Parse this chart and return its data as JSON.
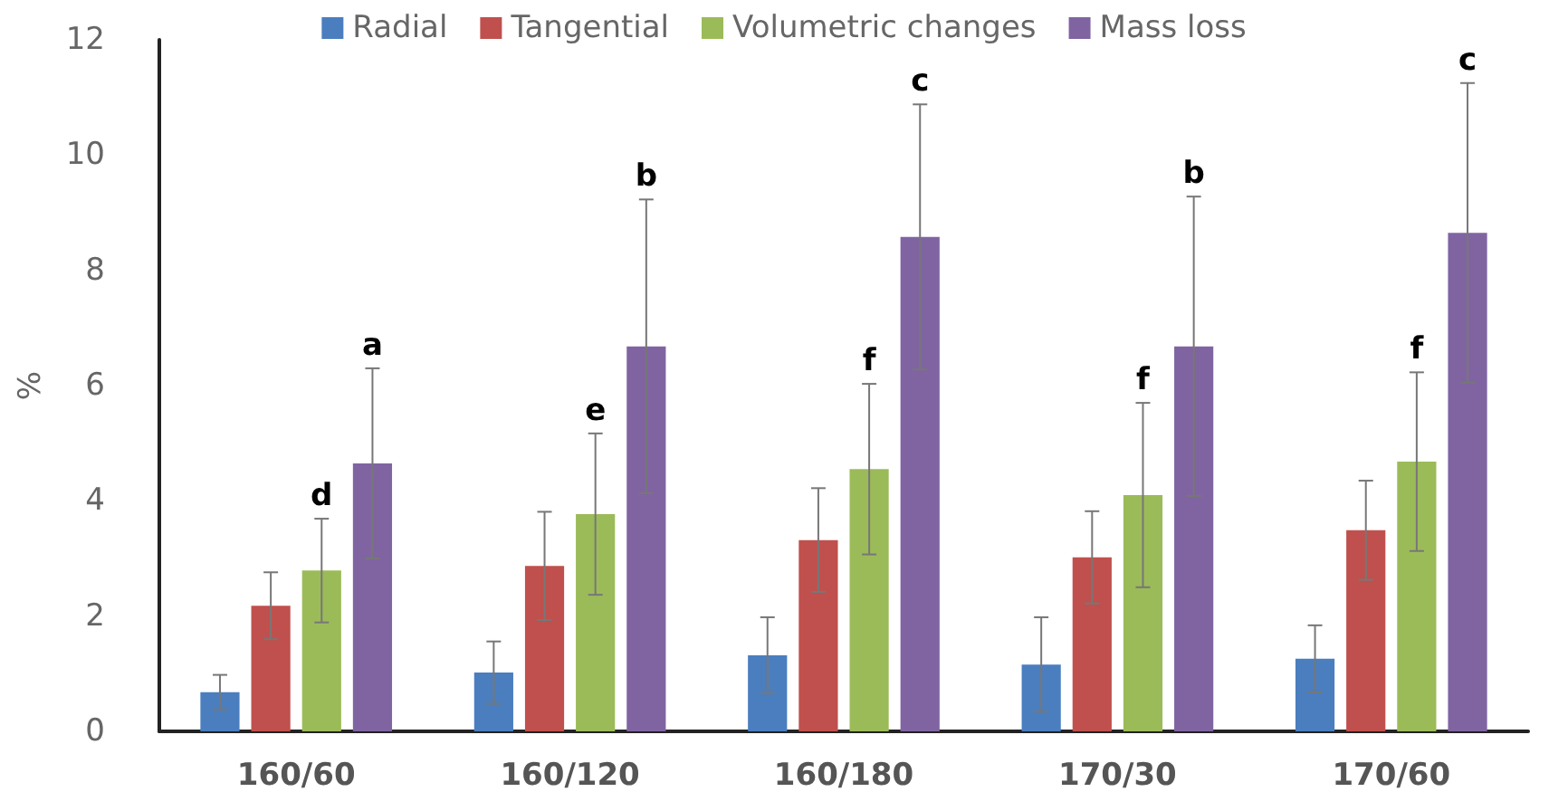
{
  "chart_data": {
    "type": "bar",
    "ylabel": "%",
    "categories": [
      "160/60",
      "160/120",
      "160/180",
      "170/30",
      "170/60"
    ],
    "series": [
      {
        "name": "Radial",
        "color": "#4a7ebf",
        "values": [
          0.68,
          1.02,
          1.32,
          1.16,
          1.26
        ],
        "errors": [
          0.3,
          0.54,
          0.66,
          0.82,
          0.58
        ]
      },
      {
        "name": "Tangential",
        "color": "#c0504d",
        "values": [
          2.18,
          2.87,
          3.32,
          3.02,
          3.49
        ],
        "errors": [
          0.58,
          0.94,
          0.9,
          0.8,
          0.86
        ]
      },
      {
        "name": "Volumetric changes",
        "color": "#9bbb59",
        "values": [
          2.79,
          3.77,
          4.55,
          4.1,
          4.68
        ],
        "errors": [
          0.9,
          1.4,
          1.48,
          1.6,
          1.55
        ]
      },
      {
        "name": "Mass loss",
        "color": "#8064a2",
        "values": [
          4.65,
          6.68,
          8.58,
          6.68,
          8.65
        ],
        "errors": [
          1.65,
          2.55,
          2.3,
          2.6,
          2.6
        ]
      }
    ],
    "annotations": [
      "d",
      "a",
      "e",
      "b",
      "f",
      "c",
      "f",
      "b",
      "f",
      "c"
    ],
    "ylim": [
      0,
      12
    ],
    "yticks": [
      0,
      2,
      4,
      6,
      8,
      10,
      12
    ],
    "grid": false,
    "legend": "top"
  }
}
